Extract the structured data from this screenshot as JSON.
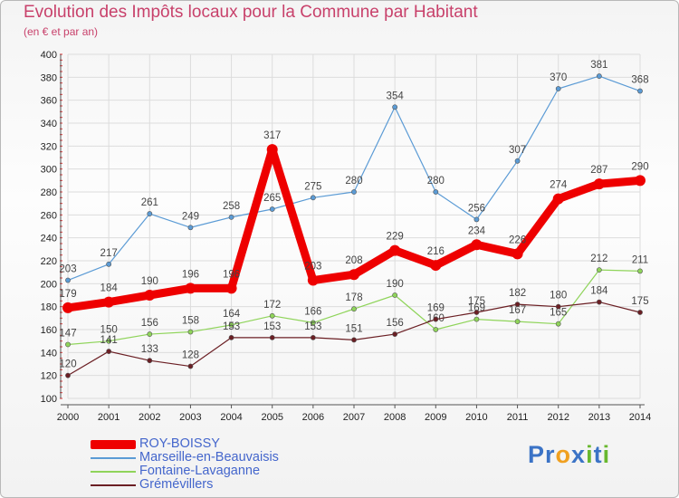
{
  "header": {
    "title": "Evolution des Impôts locaux pour la Commune par Habitant",
    "subtitle": "(en € et par an)"
  },
  "logo": {
    "text": "Proxiti",
    "letters": [
      "P",
      "r",
      "o",
      "x",
      "i",
      "t",
      "i"
    ],
    "letter_colors": [
      "#3b73c6",
      "#3b73c6",
      "#f0a020",
      "#3b73c6",
      "#69b82f",
      "#3b73c6",
      "#69b82f"
    ]
  },
  "chart_data": {
    "type": "line",
    "title": "Evolution des Impôts locaux pour la Commune par Habitant",
    "subtitle": "(en € et par an)",
    "x": [
      "2000",
      "2001",
      "2002",
      "2003",
      "2004",
      "2005",
      "2006",
      "2007",
      "2008",
      "2009",
      "2010",
      "2011",
      "2012",
      "2013",
      "2014"
    ],
    "ylim": [
      100,
      400
    ],
    "yticks": [
      100,
      120,
      140,
      160,
      180,
      200,
      220,
      240,
      260,
      280,
      300,
      320,
      340,
      360,
      380,
      400
    ],
    "grid": true,
    "legend_position": "bottom-left",
    "series": [
      {
        "name": "Marseille-en-Beauvaisis",
        "color": "#5b9bd5",
        "values": [
          203,
          217,
          261,
          249,
          258,
          265,
          275,
          280,
          354,
          280,
          256,
          307,
          370,
          381,
          368
        ]
      },
      {
        "name": "Fontaine-Lavaganne",
        "color": "#8fd45a",
        "values": [
          147,
          150,
          156,
          158,
          164,
          172,
          166,
          178,
          190,
          160,
          169,
          167,
          165,
          212,
          211
        ]
      },
      {
        "name": "Grémévillers",
        "color": "#6b1f24",
        "values": [
          120,
          141,
          133,
          128,
          153,
          153,
          153,
          151,
          156,
          169,
          175,
          182,
          180,
          184,
          175
        ]
      },
      {
        "name": "ROY-BOISSY",
        "color": "#ee0000",
        "values": [
          179,
          184,
          190,
          196,
          196,
          317,
          203,
          208,
          229,
          216,
          234,
          226,
          274,
          287,
          290
        ]
      }
    ],
    "legend_order": [
      "ROY-BOISSY",
      "Marseille-en-Beauvaisis",
      "Fontaine-Lavaganne",
      "Grémévillers"
    ]
  }
}
